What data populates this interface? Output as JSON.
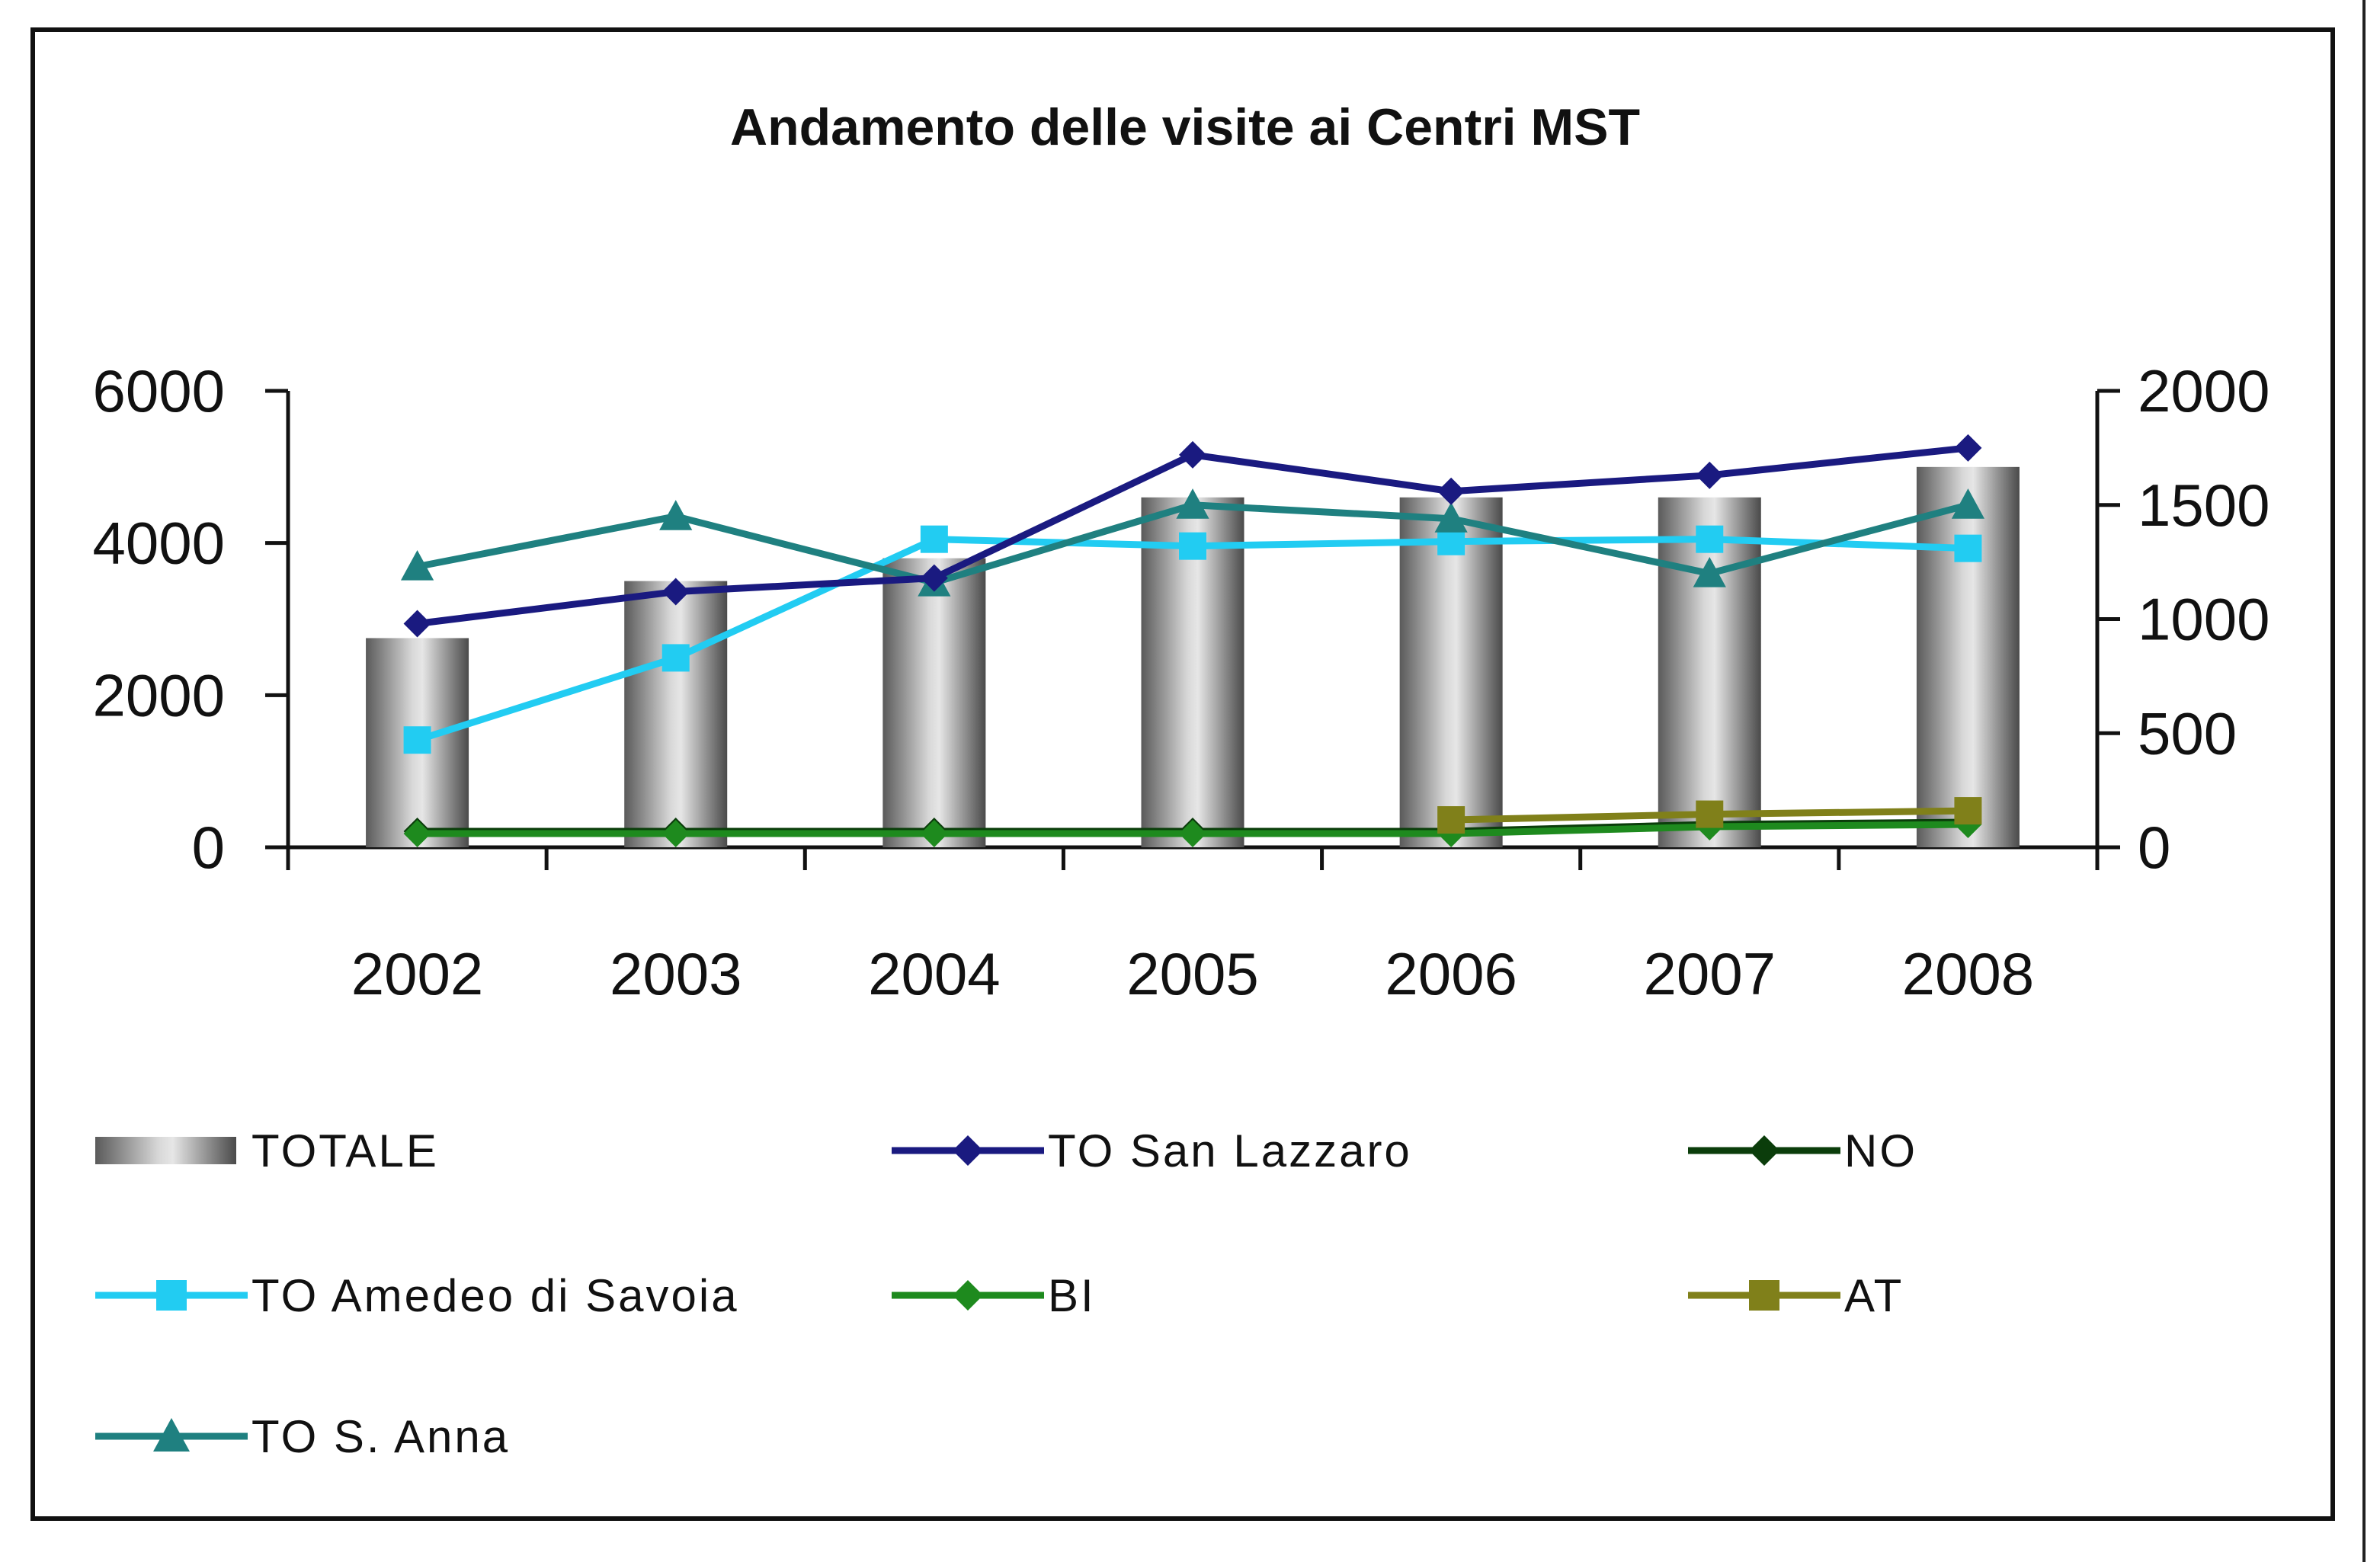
{
  "chart_data": {
    "type": "bar",
    "title": "Andamento delle visite ai Centri MST",
    "categories": [
      "2002",
      "2003",
      "2004",
      "2005",
      "2006",
      "2007",
      "2008"
    ],
    "left_axis": {
      "ylim": [
        0,
        6000
      ],
      "ticks": [
        "0",
        "2000",
        "4000",
        "6000"
      ]
    },
    "right_axis": {
      "ylim": [
        0,
        2000
      ],
      "ticks": [
        "0",
        "500",
        "1000",
        "1500",
        "2000"
      ]
    },
    "series": [
      {
        "name": "TOTALE",
        "kind": "bar",
        "axis": "left",
        "color": "#9a9a9a",
        "values": [
          2750,
          3500,
          3800,
          4600,
          4600,
          4600,
          5000
        ]
      },
      {
        "name": "TO San Lazzaro",
        "kind": "line",
        "marker": "diamond",
        "axis": "right",
        "color": "#1a1a80",
        "values": [
          980,
          1120,
          1180,
          1720,
          1560,
          1630,
          1750
        ]
      },
      {
        "name": "NO",
        "kind": "line",
        "marker": "diamond",
        "axis": "right",
        "color": "#0b3d0b",
        "values": [
          70,
          70,
          70,
          70,
          70,
          100,
          110
        ]
      },
      {
        "name": "TO Amedeo di Savoia",
        "kind": "line",
        "marker": "square",
        "axis": "right",
        "color": "#22ccf2",
        "values": [
          470,
          830,
          1350,
          1320,
          1340,
          1350,
          1310
        ]
      },
      {
        "name": "BI",
        "kind": "line",
        "marker": "diamond",
        "axis": "right",
        "color": "#1e8a1e",
        "values": [
          60,
          60,
          60,
          60,
          60,
          90,
          100
        ]
      },
      {
        "name": "AT",
        "kind": "line",
        "marker": "square",
        "axis": "right",
        "color": "#80801a",
        "values": [
          null,
          null,
          null,
          null,
          120,
          145,
          160
        ]
      },
      {
        "name": "TO S. Anna",
        "kind": "line",
        "marker": "triangle",
        "axis": "right",
        "color": "#1f8080",
        "values": [
          1230,
          1450,
          1160,
          1500,
          1440,
          1200,
          1500
        ]
      }
    ],
    "legend": [
      "TOTALE",
      "TO San Lazzaro",
      "NO",
      "TO Amedeo di Savoia",
      "BI",
      "AT",
      "TO S. Anna"
    ],
    "legend_position": "bottom"
  }
}
